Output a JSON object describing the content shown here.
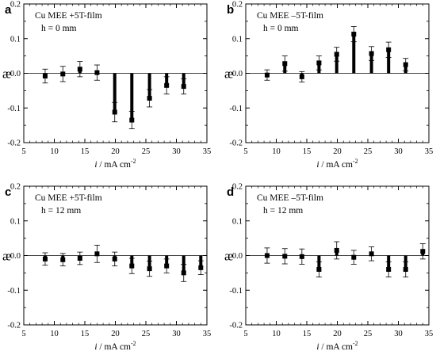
{
  "chart_data": [
    {
      "type": "bar",
      "panel": "a",
      "annotation_line1": "Cu MEE +5T-film",
      "annotation_line2": "h = 0 mm",
      "ylabel": "æ",
      "xlabel_main": "i",
      "xlabel_rest": " / mA cm",
      "xlabel_sup": "-2",
      "xlim": [
        5,
        35
      ],
      "ylim": [
        -0.2,
        0.2
      ],
      "xticks": [
        "5",
        "10",
        "15",
        "20",
        "25",
        "30",
        "35"
      ],
      "yticks": [
        "-0.2",
        "-0.1",
        "0.0",
        "0.1",
        "0.2"
      ],
      "x": [
        8.5,
        11.4,
        14.2,
        17.0,
        19.9,
        22.7,
        25.6,
        28.4,
        31.2
      ],
      "y": [
        -0.008,
        -0.002,
        0.012,
        0.002,
        -0.112,
        -0.135,
        -0.072,
        -0.035,
        -0.038
      ],
      "err": [
        0.02,
        0.022,
        0.022,
        0.022,
        0.028,
        0.025,
        0.025,
        0.025,
        0.022
      ]
    },
    {
      "type": "bar",
      "panel": "b",
      "annotation_line1": "Cu MEE –5T-film",
      "annotation_line2": "h = 0 mm",
      "ylabel": "æ",
      "xlabel_main": "i",
      "xlabel_rest": " / mA cm",
      "xlabel_sup": "-2",
      "xlim": [
        5,
        35
      ],
      "ylim": [
        -0.2,
        0.2
      ],
      "xticks": [
        "5",
        "10",
        "15",
        "20",
        "25",
        "30",
        "35"
      ],
      "yticks": [
        "-0.2",
        "-0.1",
        "0.0",
        "0.1",
        "0.2"
      ],
      "x": [
        8.5,
        11.4,
        14.2,
        17.0,
        19.9,
        22.7,
        25.6,
        28.4,
        31.2
      ],
      "y": [
        -0.005,
        0.028,
        -0.01,
        0.03,
        0.055,
        0.113,
        0.057,
        0.068,
        0.025
      ],
      "err": [
        0.015,
        0.022,
        0.015,
        0.02,
        0.02,
        0.022,
        0.02,
        0.022,
        0.018
      ]
    },
    {
      "type": "bar",
      "panel": "c",
      "annotation_line1": "Cu MEE +5T-film",
      "annotation_line2": "h = 12 mm",
      "ylabel": "æ",
      "xlabel_main": "i",
      "xlabel_rest": " / mA cm",
      "xlabel_sup": "-2",
      "xlim": [
        5,
        35
      ],
      "ylim": [
        -0.2,
        0.2
      ],
      "xticks": [
        "5",
        "10",
        "15",
        "20",
        "25",
        "30",
        "35"
      ],
      "yticks": [
        "-0.2",
        "-0.1",
        "0.0",
        "0.1",
        "0.2"
      ],
      "x": [
        8.5,
        11.4,
        14.2,
        17.0,
        19.9,
        22.7,
        25.6,
        28.4,
        31.2,
        34.0
      ],
      "y": [
        -0.01,
        -0.012,
        -0.008,
        0.005,
        -0.01,
        -0.03,
        -0.038,
        -0.03,
        -0.05,
        -0.035
      ],
      "err": [
        0.018,
        0.018,
        0.018,
        0.025,
        0.02,
        0.022,
        0.022,
        0.02,
        0.025,
        0.02
      ]
    },
    {
      "type": "bar",
      "panel": "d",
      "annotation_line1": "Cu MEE –5T-film",
      "annotation_line2": "h = 12 mm",
      "ylabel": "æ",
      "xlabel_main": "i",
      "xlabel_rest": " / mA cm",
      "xlabel_sup": "-2",
      "xlim": [
        5,
        35
      ],
      "ylim": [
        -0.2,
        0.2
      ],
      "xticks": [
        "5",
        "10",
        "15",
        "20",
        "25",
        "30",
        "35"
      ],
      "yticks": [
        "-0.2",
        "-0.1",
        "0.0",
        "0.1",
        "0.2"
      ],
      "x": [
        8.5,
        11.4,
        14.2,
        17.0,
        19.9,
        22.7,
        25.6,
        28.4,
        31.2,
        34.0
      ],
      "y": [
        0.0,
        -0.002,
        -0.003,
        -0.04,
        0.015,
        -0.005,
        0.005,
        -0.04,
        -0.04,
        0.012
      ],
      "err": [
        0.022,
        0.022,
        0.022,
        0.022,
        0.025,
        0.02,
        0.02,
        0.022,
        0.022,
        0.022
      ]
    }
  ]
}
